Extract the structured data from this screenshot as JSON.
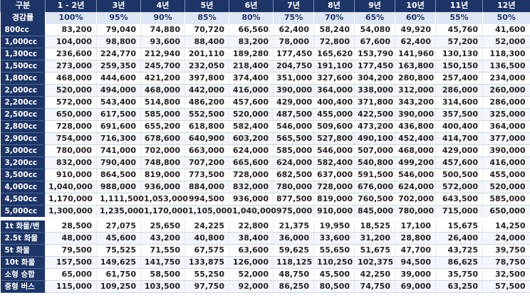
{
  "header_label": "구분",
  "rate_label": "경감률",
  "periods": [
    "1 - 2년",
    "3년",
    "4년",
    "5년",
    "6년",
    "7년",
    "8년",
    "9년",
    "10년",
    "11년",
    "12년"
  ],
  "rates": [
    "100%",
    "95%",
    "90%",
    "85%",
    "80%",
    "75%",
    "70%",
    "65%",
    "60%",
    "55%",
    "50%"
  ],
  "engine_rows": [
    {
      "label": "800cc",
      "values": [
        "83,200",
        "79,040",
        "74,880",
        "70,720",
        "66,560",
        "62,400",
        "58,240",
        "54,080",
        "49,920",
        "45,760",
        "41,600"
      ]
    },
    {
      "label": "1,000cc",
      "values": [
        "104,000",
        "98,800",
        "93,600",
        "88,400",
        "83,200",
        "78,000",
        "72,800",
        "67,600",
        "62,400",
        "57,200",
        "52,000"
      ]
    },
    {
      "label": "1,300cc",
      "values": [
        "236,600",
        "224,770",
        "212,940",
        "201,110",
        "189,280",
        "177,450",
        "165,620",
        "153,790",
        "141,960",
        "130,130",
        "118,300"
      ]
    },
    {
      "label": "1,500cc",
      "values": [
        "273,000",
        "259,350",
        "245,700",
        "232,050",
        "218,400",
        "204,750",
        "191,100",
        "177,450",
        "163,800",
        "150,150",
        "136,500"
      ]
    },
    {
      "label": "1,800cc",
      "values": [
        "468,000",
        "444,600",
        "421,200",
        "397,800",
        "374,400",
        "351,000",
        "327,600",
        "304,200",
        "280,800",
        "257,400",
        "234,000"
      ]
    },
    {
      "label": "2,000cc",
      "values": [
        "520,000",
        "494,000",
        "468,000",
        "442,000",
        "416,000",
        "390,000",
        "364,000",
        "338,000",
        "312,000",
        "286,000",
        "260,000"
      ]
    },
    {
      "label": "2,200cc",
      "values": [
        "572,000",
        "543,400",
        "514,800",
        "486,200",
        "457,600",
        "429,000",
        "400,400",
        "371,800",
        "343,200",
        "314,600",
        "286,000"
      ]
    },
    {
      "label": "2,500cc",
      "values": [
        "650,000",
        "617,500",
        "585,000",
        "552,500",
        "520,000",
        "487,500",
        "455,000",
        "422,500",
        "390,000",
        "357,500",
        "325,000"
      ]
    },
    {
      "label": "2,800cc",
      "values": [
        "728,000",
        "691,600",
        "655,200",
        "618,800",
        "582,400",
        "546,000",
        "509,600",
        "473,200",
        "436,800",
        "400,400",
        "364,000"
      ]
    },
    {
      "label": "2,900cc",
      "values": [
        "754,000",
        "716,300",
        "678,600",
        "640,900",
        "603,200",
        "565,500",
        "527,800",
        "490,100",
        "452,400",
        "414,700",
        "377,000"
      ]
    },
    {
      "label": "3,000cc",
      "values": [
        "780,000",
        "741,000",
        "702,000",
        "663,000",
        "624,000",
        "585,000",
        "546,000",
        "507,000",
        "468,000",
        "429,000",
        "390,000"
      ]
    },
    {
      "label": "3,200cc",
      "values": [
        "832,000",
        "790,400",
        "748,800",
        "707,200",
        "665,600",
        "624,000",
        "582,400",
        "540,800",
        "499,200",
        "457,600",
        "416,000"
      ]
    },
    {
      "label": "3,500cc",
      "values": [
        "910,000",
        "864,500",
        "819,000",
        "773,500",
        "728,000",
        "682,500",
        "637,000",
        "591,500",
        "546,000",
        "500,500",
        "455,000"
      ]
    },
    {
      "label": "4,000cc",
      "values": [
        "1,040,000",
        "988,000",
        "936,000",
        "884,000",
        "832,000",
        "780,000",
        "728,000",
        "676,000",
        "624,000",
        "572,000",
        "520,000"
      ]
    },
    {
      "label": "4,500cc",
      "values": [
        "1,170,000",
        "1,111,500",
        "1,053,000",
        "994,500",
        "936,000",
        "877,500",
        "819,000",
        "760,500",
        "702,000",
        "643,500",
        "585,000"
      ]
    },
    {
      "label": "5,000cc",
      "values": [
        "1,300,000",
        "1,235,000",
        "1,170,000",
        "1,105,000",
        "1,040,000",
        "975,000",
        "910,000",
        "845,000",
        "780,000",
        "715,000",
        "650,000"
      ]
    }
  ],
  "vehicle_rows": [
    {
      "label": "1t 화물/밴",
      "values": [
        "28,500",
        "27,075",
        "25,650",
        "24,225",
        "22,800",
        "21,375",
        "19,950",
        "18,525",
        "17,100",
        "15,675",
        "14,250"
      ]
    },
    {
      "label": "2.5t 화물",
      "values": [
        "48,000",
        "45,600",
        "43,200",
        "40,800",
        "38,400",
        "36,000",
        "33,600",
        "31,200",
        "28,800",
        "26,400",
        "24,000"
      ]
    },
    {
      "label": "5t 화물",
      "values": [
        "79,500",
        "75,525",
        "71,550",
        "67,575",
        "63,600",
        "59,625",
        "55,650",
        "51,675",
        "47,700",
        "43,725",
        "39,750"
      ]
    },
    {
      "label": "10t 화물",
      "values": [
        "157,500",
        "149,625",
        "141,750",
        "133,875",
        "126,000",
        "118,125",
        "110,250",
        "102,375",
        "94,500",
        "86,625",
        "78,750"
      ]
    },
    {
      "label": "소형 승합",
      "values": [
        "65,000",
        "61,750",
        "58,500",
        "55,250",
        "52,000",
        "48,750",
        "45,500",
        "42,250",
        "39,000",
        "35,750",
        "32,500"
      ]
    },
    {
      "label": "중형 버스",
      "values": [
        "115,000",
        "109,250",
        "103,500",
        "97,750",
        "92,000",
        "86,250",
        "80,500",
        "74,750",
        "69,000",
        "63,250",
        "57,500"
      ]
    }
  ]
}
